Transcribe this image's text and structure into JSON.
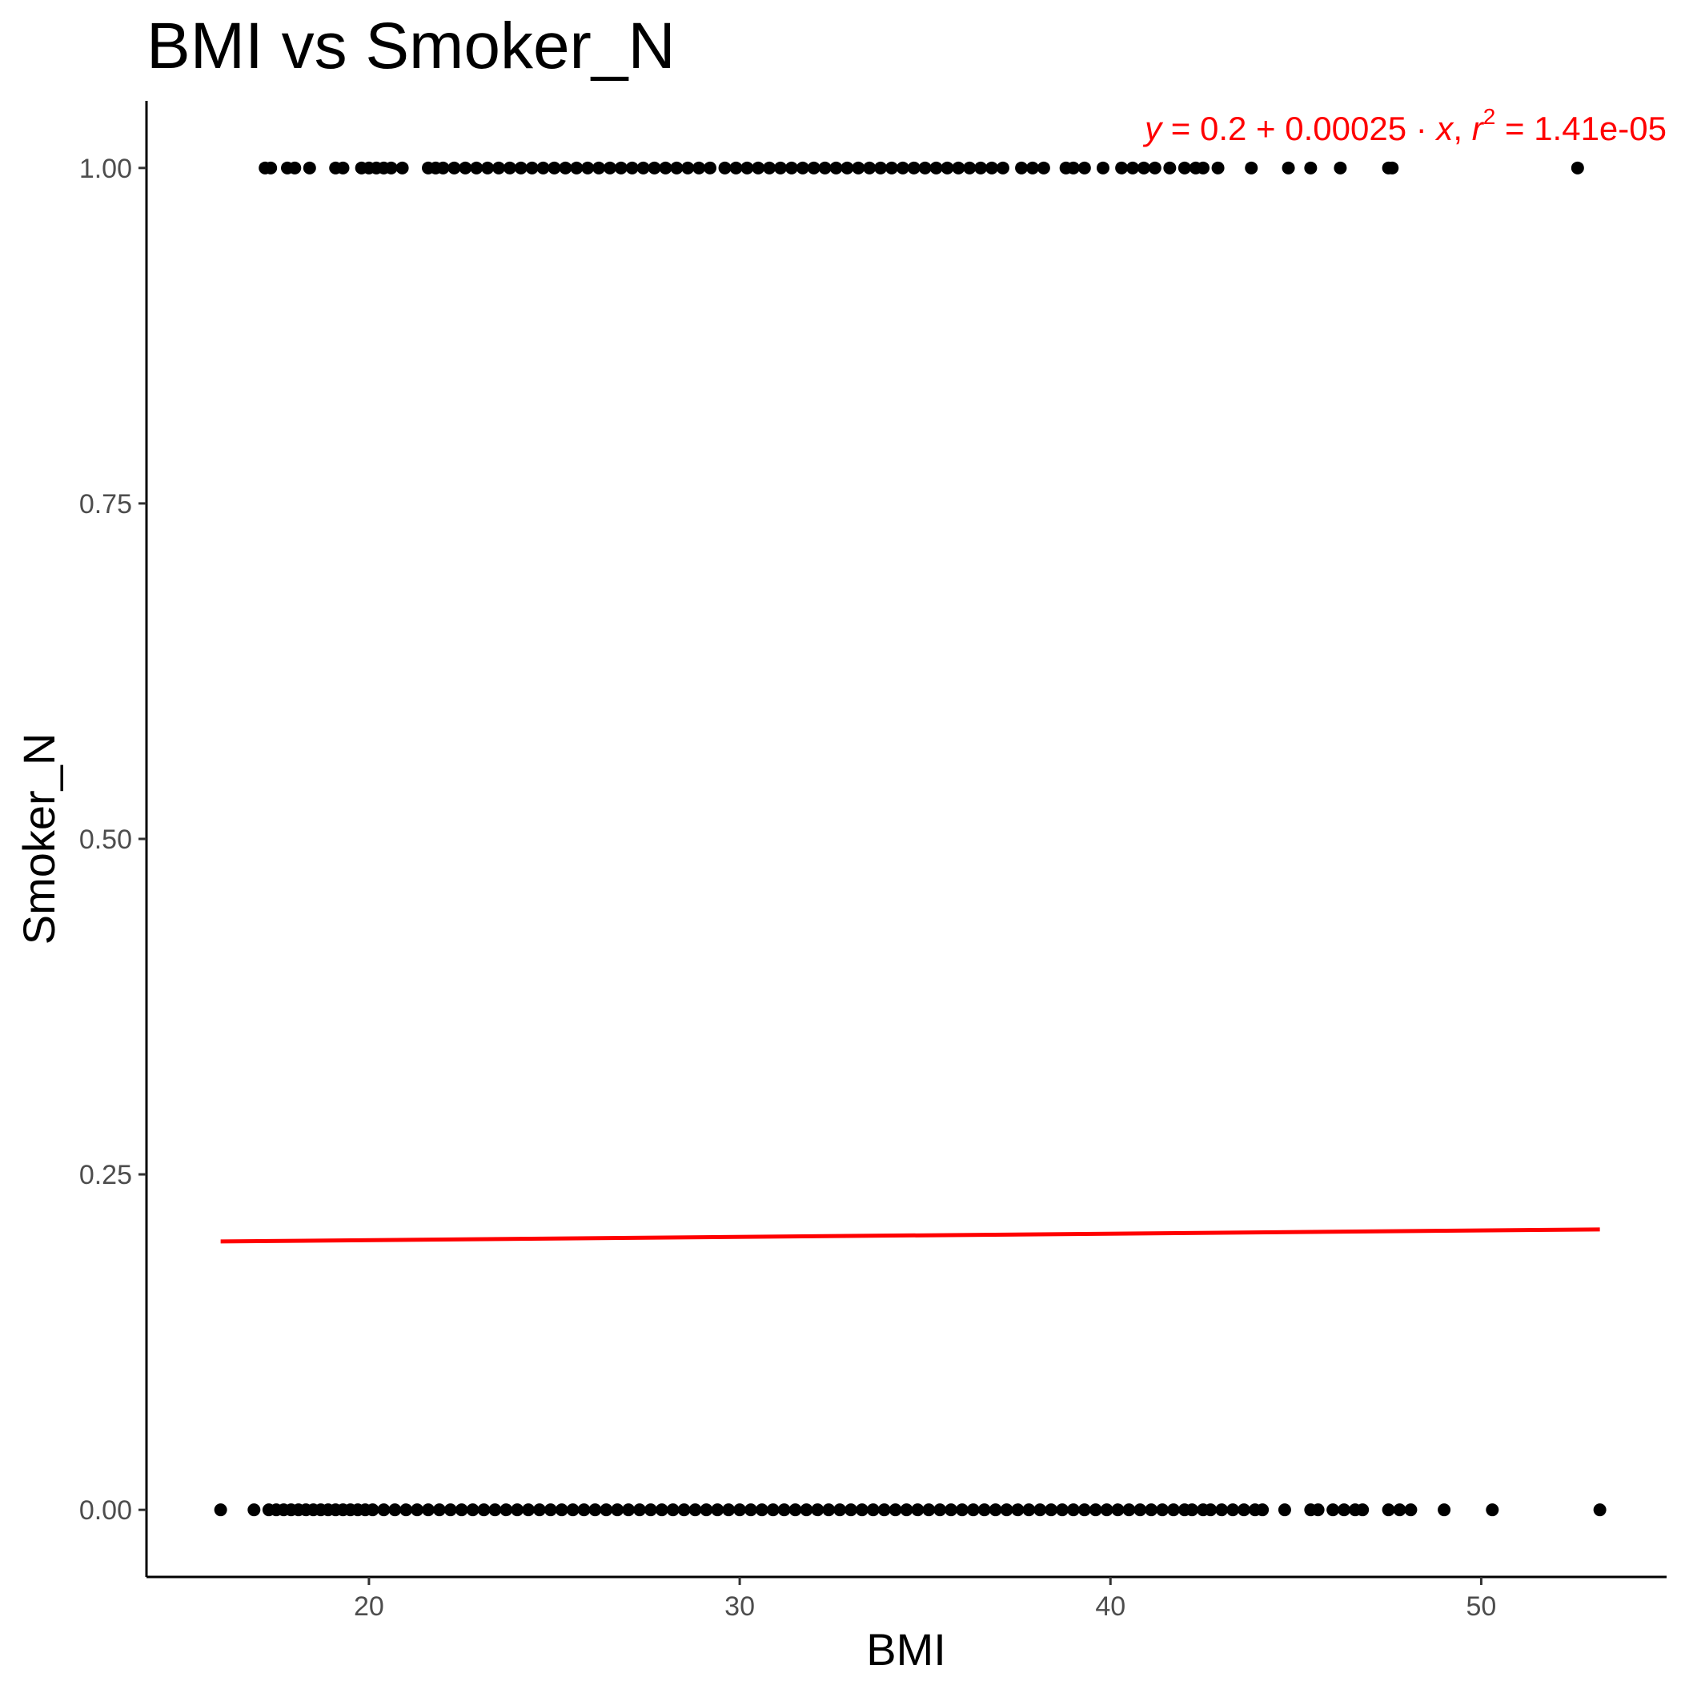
{
  "chart_data": {
    "type": "scatter",
    "title": "BMI vs Smoker_N",
    "xlabel": "BMI",
    "ylabel": "Smoker_N",
    "xlim": [
      14.0,
      55.0
    ],
    "ylim": [
      -0.05,
      1.05
    ],
    "x_ticks": [
      20,
      30,
      40,
      50
    ],
    "x_tick_labels": [
      "20",
      "30",
      "40",
      "50"
    ],
    "y_ticks": [
      0.0,
      0.25,
      0.5,
      0.75,
      1.0
    ],
    "y_tick_labels": [
      "0.00",
      "0.25",
      "0.50",
      "0.75",
      "1.00"
    ],
    "grid": false,
    "series": [
      {
        "y": 1,
        "x": [
          17.2,
          17.35,
          17.8,
          18.0,
          18.4,
          19.1,
          19.3,
          19.8,
          20.0,
          20.2,
          20.4,
          20.6,
          20.9,
          21.6,
          21.8,
          22.0,
          22.3,
          22.6,
          22.9,
          23.2,
          23.5,
          23.8,
          24.1,
          24.4,
          24.7,
          25.0,
          25.3,
          25.6,
          25.9,
          26.2,
          26.5,
          26.8,
          27.1,
          27.4,
          27.7,
          28.0,
          28.3,
          28.6,
          28.9,
          29.2,
          29.6,
          29.9,
          30.2,
          30.5,
          30.8,
          31.1,
          31.4,
          31.7,
          32.0,
          32.3,
          32.6,
          32.9,
          33.2,
          33.5,
          33.8,
          34.1,
          34.4,
          34.7,
          35.0,
          35.3,
          35.6,
          35.9,
          36.2,
          36.5,
          36.8,
          37.1,
          37.6,
          37.9,
          38.2,
          38.8,
          39.0,
          39.3,
          39.8,
          40.3,
          40.6,
          40.9,
          41.2,
          41.6,
          42.0,
          42.3,
          42.5,
          42.9,
          43.8,
          44.8,
          45.4,
          46.2,
          47.5,
          47.6,
          52.6
        ],
        "color": "#000000"
      },
      {
        "y": 0,
        "x": [
          16.0,
          16.9,
          17.3,
          17.5,
          17.7,
          17.9,
          18.1,
          18.3,
          18.5,
          18.7,
          18.9,
          19.1,
          19.3,
          19.5,
          19.7,
          19.9,
          20.1,
          20.4,
          20.7,
          21.0,
          21.3,
          21.6,
          21.9,
          22.2,
          22.5,
          22.8,
          23.1,
          23.4,
          23.7,
          24.0,
          24.3,
          24.6,
          24.9,
          25.2,
          25.5,
          25.8,
          26.1,
          26.4,
          26.7,
          27.0,
          27.3,
          27.6,
          27.9,
          28.2,
          28.5,
          28.8,
          29.1,
          29.4,
          29.7,
          30.0,
          30.3,
          30.6,
          30.9,
          31.2,
          31.5,
          31.8,
          32.1,
          32.4,
          32.7,
          33.0,
          33.3,
          33.6,
          33.9,
          34.2,
          34.5,
          34.8,
          35.1,
          35.4,
          35.7,
          36.0,
          36.3,
          36.6,
          36.9,
          37.2,
          37.5,
          37.8,
          38.1,
          38.4,
          38.7,
          39.0,
          39.3,
          39.6,
          39.9,
          40.2,
          40.5,
          40.8,
          41.1,
          41.4,
          41.7,
          42.0,
          42.2,
          42.5,
          42.7,
          43.0,
          43.3,
          43.6,
          43.9,
          44.1,
          44.7,
          45.4,
          45.6,
          46.0,
          46.3,
          46.6,
          46.8,
          47.5,
          47.8,
          48.1,
          49.0,
          50.3,
          53.2
        ],
        "color": "#000000"
      }
    ],
    "regression_line": {
      "x": [
        16.0,
        53.2
      ],
      "y": [
        0.2,
        0.209
      ],
      "color": "#ff0000"
    },
    "annotation": {
      "y_symbol": "y",
      "equals": " = ",
      "intercept": "0.2",
      "plus": " + ",
      "slope": "0.00025",
      "dot": " · ",
      "x_symbol": "x",
      "separator": ",  ",
      "r_symbol": "r",
      "r_exponent": "2",
      "r2_equals": " = ",
      "r2_value": "1.41e-05",
      "color": "#ff0000"
    }
  }
}
